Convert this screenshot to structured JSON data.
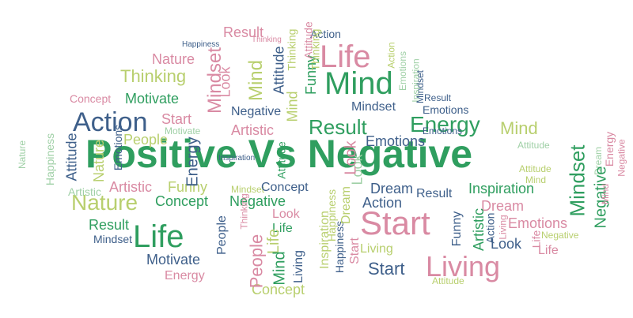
{
  "title": "Positive Vs Negative",
  "palette": {
    "green": "#2f9e5f",
    "lime": "#b8cf6e",
    "pink": "#d98aa3",
    "navy": "#3e5f8a",
    "light_green": "#9fd0a6",
    "background": "#ffffff"
  },
  "words": [
    {
      "text": "Positive Vs Negative",
      "color": "#2f9e5f"
    },
    {
      "text": "Life",
      "color": "#d98aa3"
    },
    {
      "text": "Mind",
      "color": "#2f9e5f"
    },
    {
      "text": "Action",
      "color": "#3e5f8a"
    },
    {
      "text": "Energy",
      "color": "#2f9e5f"
    },
    {
      "text": "Nature",
      "color": "#b8cf6e"
    },
    {
      "text": "Life",
      "color": "#2f9e5f"
    },
    {
      "text": "Start",
      "color": "#d98aa3"
    },
    {
      "text": "Living",
      "color": "#d98aa3"
    },
    {
      "text": "Result",
      "color": "#d98aa3"
    },
    {
      "text": "Result",
      "color": "#2f9e5f"
    },
    {
      "text": "Thinking",
      "color": "#b8cf6e"
    },
    {
      "text": "Nature",
      "color": "#d98aa3"
    },
    {
      "text": "Motivate",
      "color": "#2f9e5f"
    },
    {
      "text": "Concept",
      "color": "#d98aa3"
    },
    {
      "text": "Start",
      "color": "#d98aa3"
    },
    {
      "text": "Motivate",
      "color": "#9fd0a6"
    },
    {
      "text": "People",
      "color": "#b8cf6e"
    },
    {
      "text": "Artistic",
      "color": "#d98aa3"
    },
    {
      "text": "Negative",
      "color": "#3e5f8a"
    },
    {
      "text": "Emotions",
      "color": "#3e5f8a"
    },
    {
      "text": "Mindset",
      "color": "#3e5f8a"
    },
    {
      "text": "Mind",
      "color": "#b8cf6e"
    },
    {
      "text": "Attitude",
      "color": "#9fd0a6"
    },
    {
      "text": "Artistic",
      "color": "#9fd0a6"
    },
    {
      "text": "Artistic",
      "color": "#d98aa3"
    },
    {
      "text": "Funny",
      "color": "#b8cf6e"
    },
    {
      "text": "Mindset",
      "color": "#b8cf6e"
    },
    {
      "text": "Concept",
      "color": "#3e5f8a"
    },
    {
      "text": "Negative",
      "color": "#2f9e5f"
    },
    {
      "text": "Dream",
      "color": "#3e5f8a"
    },
    {
      "text": "Result",
      "color": "#3e5f8a"
    },
    {
      "text": "Inspiration",
      "color": "#2f9e5f"
    },
    {
      "text": "Action",
      "color": "#3e5f8a"
    },
    {
      "text": "Dream",
      "color": "#d98aa3"
    },
    {
      "text": "Concept",
      "color": "#2f9e5f"
    },
    {
      "text": "Look",
      "color": "#d98aa3"
    },
    {
      "text": "Life",
      "color": "#2f9e5f"
    },
    {
      "text": "Result",
      "color": "#2f9e5f"
    },
    {
      "text": "Mindset",
      "color": "#3e5f8a"
    },
    {
      "text": "Motivate",
      "color": "#3e5f8a"
    },
    {
      "text": "Energy",
      "color": "#d98aa3"
    },
    {
      "text": "Living",
      "color": "#b8cf6e"
    },
    {
      "text": "Start",
      "color": "#3e5f8a"
    },
    {
      "text": "Emotions",
      "color": "#d98aa3"
    },
    {
      "text": "Look",
      "color": "#3e5f8a"
    },
    {
      "text": "Life",
      "color": "#d98aa3"
    },
    {
      "text": "Negative",
      "color": "#b8cf6e"
    },
    {
      "text": "Attitude",
      "color": "#b8cf6e"
    },
    {
      "text": "Concept",
      "color": "#b8cf6e"
    },
    {
      "text": "Emotions",
      "color": "#3e5f8a"
    },
    {
      "text": "Result",
      "color": "#3e5f8a"
    },
    {
      "text": "Emotions",
      "color": "#3e5f8a"
    },
    {
      "text": "Mind",
      "color": "#b8cf6e"
    },
    {
      "text": "Attitude",
      "color": "#b8cf6e"
    },
    {
      "text": "Inspiration",
      "color": "#3e5f8a"
    },
    {
      "text": "Happiness",
      "color": "#3e5f8a"
    },
    {
      "text": "Thinking",
      "color": "#d98aa3"
    },
    {
      "text": "Action",
      "color": "#3e5f8a"
    },
    {
      "text": "Nature",
      "color": "#9fd0a6"
    },
    {
      "text": "Happiness",
      "color": "#9fd0a6"
    },
    {
      "text": "Attitude",
      "color": "#3e5f8a"
    },
    {
      "text": "Energy",
      "color": "#3e5f8a"
    },
    {
      "text": "Look",
      "color": "#d98aa3"
    },
    {
      "text": "Mind",
      "color": "#b8cf6e"
    },
    {
      "text": "Attitude",
      "color": "#3e5f8a"
    },
    {
      "text": "Mindset",
      "color": "#d98aa3"
    },
    {
      "text": "Thinking",
      "color": "#b8cf6e"
    },
    {
      "text": "People",
      "color": "#3e5f8a"
    },
    {
      "text": "Funny",
      "color": "#2f9e5f"
    },
    {
      "text": "Mind",
      "color": "#b8cf6e"
    },
    {
      "text": "Emotions",
      "color": "#9fd0a6"
    },
    {
      "text": "Nature",
      "color": "#b8cf6e"
    },
    {
      "text": "Emotions",
      "color": "#3e5f8a"
    },
    {
      "text": "Attitude",
      "color": "#2f9e5f"
    },
    {
      "text": "Happiness",
      "color": "#b8cf6e"
    },
    {
      "text": "Dream",
      "color": "#9fd0a6"
    },
    {
      "text": "Look",
      "color": "#9fd0a6"
    },
    {
      "text": "Life",
      "color": "#b8cf6e"
    },
    {
      "text": "Mind",
      "color": "#2f9e5f"
    },
    {
      "text": "Living",
      "color": "#3e5f8a"
    },
    {
      "text": "Inspiration",
      "color": "#b8cf6e"
    },
    {
      "text": "Happiness",
      "color": "#3e5f8a"
    },
    {
      "text": "Start",
      "color": "#d98aa3"
    },
    {
      "text": "Dream",
      "color": "#b8cf6e"
    },
    {
      "text": "Funny",
      "color": "#3e5f8a"
    },
    {
      "text": "Artistic",
      "color": "#2f9e5f"
    },
    {
      "text": "Action",
      "color": "#3e5f8a"
    },
    {
      "text": "Living",
      "color": "#d98aa3"
    },
    {
      "text": "Mindset",
      "color": "#2f9e5f"
    },
    {
      "text": "Negative",
      "color": "#2f9e5f"
    },
    {
      "text": "Mind",
      "color": "#d98aa3"
    },
    {
      "text": "Energy",
      "color": "#d98aa3"
    },
    {
      "text": "Negative",
      "color": "#d98aa3"
    },
    {
      "text": "Life",
      "color": "#d98aa3"
    },
    {
      "text": "People",
      "color": "#d98aa3"
    },
    {
      "text": "Thinking",
      "color": "#d98aa3"
    },
    {
      "text": "Inspiration",
      "color": "#9fd0a6"
    },
    {
      "text": "Look",
      "color": "#d98aa3"
    },
    {
      "text": "Mindset",
      "color": "#3e5f8a"
    },
    {
      "text": "Attitude",
      "color": "#d98aa3"
    },
    {
      "text": "Thinking",
      "color": "#b8cf6e"
    },
    {
      "text": "Action",
      "color": "#b8cf6e"
    }
  ]
}
